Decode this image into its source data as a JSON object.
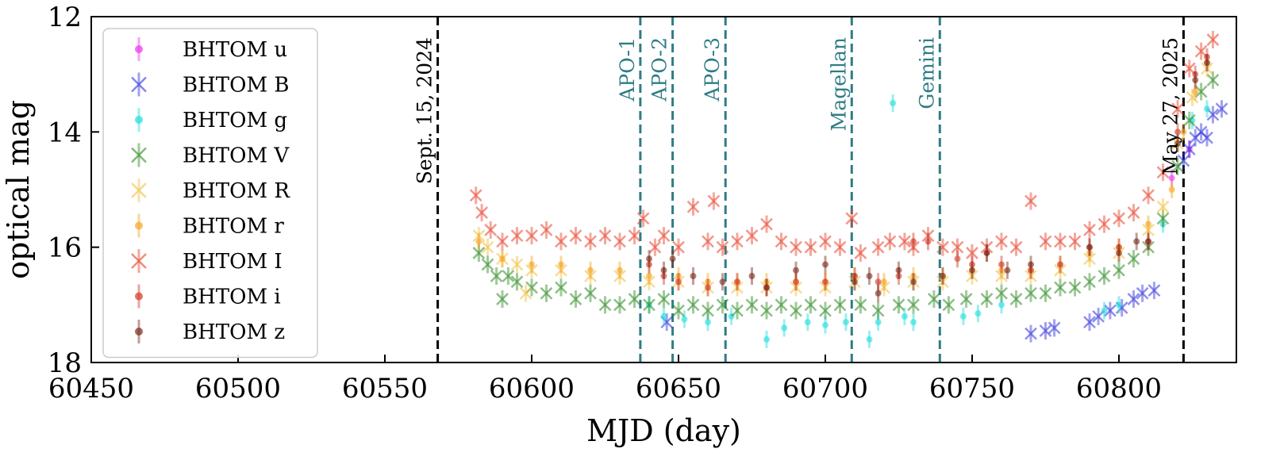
{
  "chart_data": {
    "type": "scatter",
    "title": "",
    "xlabel": "MJD (day)",
    "ylabel": "optical mag",
    "xlim": [
      60450,
      60840
    ],
    "ylim": [
      18,
      12
    ],
    "y_inverted": true,
    "xticks": [
      60450,
      60500,
      60550,
      60600,
      60650,
      60700,
      60750,
      60800
    ],
    "xtick_labels": [
      "60450",
      "60500",
      "60550",
      "60600",
      "60650",
      "60700",
      "60750",
      "60800"
    ],
    "yticks": [
      12,
      14,
      16,
      18
    ],
    "ytick_labels": [
      "12",
      "14",
      "16",
      "18"
    ],
    "grid": false,
    "legend_position": "upper-left",
    "vertical_lines": [
      {
        "x": 60568,
        "label": "Sept. 15, 2024",
        "color": "#000000",
        "style": "dashed"
      },
      {
        "x": 60637,
        "label": "APO-1",
        "color": "#2e7d85",
        "style": "dashed"
      },
      {
        "x": 60648,
        "label": "APO-2",
        "color": "#2e7d85",
        "style": "dashed"
      },
      {
        "x": 60666,
        "label": "APO-3",
        "color": "#2e7d85",
        "style": "dashed"
      },
      {
        "x": 60709,
        "label": "Magellan",
        "color": "#2e7d85",
        "style": "dashed"
      },
      {
        "x": 60739,
        "label": "Gemini",
        "color": "#2e7d85",
        "style": "dashed"
      },
      {
        "x": 60822,
        "label": "May 27, 2025",
        "color": "#000000",
        "style": "dashed"
      }
    ],
    "series": [
      {
        "name": "BHTOM u",
        "marker": "dot",
        "color": "#ee33ee",
        "points": [
          [
            60818,
            14.8
          ],
          [
            60824,
            14.3
          ]
        ]
      },
      {
        "name": "BHTOM B",
        "marker": "x",
        "color": "#3333dd",
        "points": [
          [
            60646,
            17.3
          ],
          [
            60770,
            17.5
          ],
          [
            60775,
            17.45
          ],
          [
            60778,
            17.4
          ],
          [
            60790,
            17.3
          ],
          [
            60793,
            17.2
          ],
          [
            60797,
            17.1
          ],
          [
            60801,
            17.05
          ],
          [
            60805,
            16.9
          ],
          [
            60808,
            16.8
          ],
          [
            60812,
            16.75
          ],
          [
            60822,
            14.5
          ],
          [
            60824,
            14.3
          ],
          [
            60826,
            14.1
          ],
          [
            60828,
            14.0
          ],
          [
            60830,
            14.1
          ],
          [
            60832,
            13.7
          ],
          [
            60835,
            13.6
          ]
        ]
      },
      {
        "name": "BHTOM g",
        "marker": "dot",
        "color": "#22dddd",
        "points": [
          [
            60640,
            17.0
          ],
          [
            60645,
            17.2
          ],
          [
            60652,
            17.25
          ],
          [
            60660,
            17.3
          ],
          [
            60668,
            17.2
          ],
          [
            60680,
            17.6
          ],
          [
            60686,
            17.4
          ],
          [
            60694,
            17.3
          ],
          [
            60700,
            17.35
          ],
          [
            60707,
            17.3
          ],
          [
            60715,
            17.6
          ],
          [
            60718,
            17.3
          ],
          [
            60723,
            13.5
          ],
          [
            60727,
            17.2
          ],
          [
            60730,
            17.3
          ],
          [
            60747,
            17.2
          ],
          [
            60752,
            17.15
          ],
          [
            60760,
            17.0
          ],
          [
            60795,
            17.1
          ],
          [
            60800,
            17.0
          ],
          [
            60815,
            15.6
          ],
          [
            60825,
            13.8
          ],
          [
            60830,
            13.6
          ]
        ]
      },
      {
        "name": "BHTOM V",
        "marker": "x",
        "color": "#2e8b22",
        "points": [
          [
            60582,
            16.1
          ],
          [
            60585,
            16.3
          ],
          [
            60588,
            16.5
          ],
          [
            60590,
            16.9
          ],
          [
            60592,
            16.5
          ],
          [
            60595,
            16.6
          ],
          [
            60600,
            16.7
          ],
          [
            60605,
            16.8
          ],
          [
            60610,
            16.7
          ],
          [
            60615,
            16.9
          ],
          [
            60620,
            16.8
          ],
          [
            60625,
            17.0
          ],
          [
            60630,
            17.0
          ],
          [
            60635,
            16.9
          ],
          [
            60640,
            17.0
          ],
          [
            60645,
            16.9
          ],
          [
            60650,
            17.1
          ],
          [
            60655,
            17.0
          ],
          [
            60660,
            17.1
          ],
          [
            60665,
            17.0
          ],
          [
            60670,
            17.1
          ],
          [
            60675,
            17.0
          ],
          [
            60680,
            17.1
          ],
          [
            60685,
            17.0
          ],
          [
            60690,
            17.1
          ],
          [
            60695,
            17.0
          ],
          [
            60700,
            17.1
          ],
          [
            60705,
            17.0
          ],
          [
            60712,
            17.0
          ],
          [
            60718,
            17.1
          ],
          [
            60725,
            17.0
          ],
          [
            60730,
            17.0
          ],
          [
            60737,
            16.9
          ],
          [
            60742,
            17.0
          ],
          [
            60748,
            16.9
          ],
          [
            60755,
            16.9
          ],
          [
            60760,
            16.8
          ],
          [
            60765,
            16.9
          ],
          [
            60770,
            16.8
          ],
          [
            60775,
            16.8
          ],
          [
            60780,
            16.7
          ],
          [
            60785,
            16.7
          ],
          [
            60790,
            16.6
          ],
          [
            60795,
            16.5
          ],
          [
            60800,
            16.4
          ],
          [
            60805,
            16.2
          ],
          [
            60810,
            16.0
          ],
          [
            60815,
            15.5
          ],
          [
            60820,
            14.6
          ],
          [
            60824,
            13.8
          ],
          [
            60828,
            13.3
          ],
          [
            60832,
            13.1
          ]
        ]
      },
      {
        "name": "BHTOM R",
        "marker": "x",
        "color": "#f0c040",
        "points": [
          [
            60582,
            15.8
          ],
          [
            60585,
            16.0
          ],
          [
            60590,
            16.2
          ],
          [
            60595,
            16.3
          ],
          [
            60598,
            16.8
          ],
          [
            60600,
            16.4
          ],
          [
            60610,
            16.4
          ],
          [
            60620,
            16.5
          ],
          [
            60630,
            16.5
          ],
          [
            60640,
            16.6
          ],
          [
            60650,
            16.6
          ],
          [
            60660,
            16.7
          ],
          [
            60670,
            16.7
          ],
          [
            60680,
            16.7
          ],
          [
            60690,
            16.7
          ],
          [
            60700,
            16.7
          ],
          [
            60710,
            16.6
          ],
          [
            60720,
            16.7
          ],
          [
            60730,
            16.6
          ],
          [
            60740,
            16.6
          ],
          [
            60750,
            16.5
          ],
          [
            60760,
            16.5
          ],
          [
            60770,
            16.5
          ],
          [
            60780,
            16.4
          ],
          [
            60790,
            16.2
          ],
          [
            60800,
            16.1
          ],
          [
            60810,
            15.7
          ],
          [
            60815,
            15.3
          ],
          [
            60820,
            14.2
          ],
          [
            60825,
            13.4
          ],
          [
            60830,
            12.9
          ]
        ]
      },
      {
        "name": "BHTOM r",
        "marker": "dot",
        "color": "#f5a623",
        "points": [
          [
            60582,
            15.9
          ],
          [
            60590,
            16.2
          ],
          [
            60600,
            16.3
          ],
          [
            60610,
            16.3
          ],
          [
            60620,
            16.4
          ],
          [
            60630,
            16.4
          ],
          [
            60640,
            16.5
          ],
          [
            60650,
            16.5
          ],
          [
            60660,
            16.6
          ],
          [
            60670,
            16.6
          ],
          [
            60680,
            16.6
          ],
          [
            60690,
            16.6
          ],
          [
            60700,
            16.6
          ],
          [
            60710,
            16.5
          ],
          [
            60720,
            16.6
          ],
          [
            60730,
            16.5
          ],
          [
            60740,
            16.5
          ],
          [
            60750,
            16.4
          ],
          [
            60760,
            16.4
          ],
          [
            60770,
            16.4
          ],
          [
            60780,
            16.3
          ],
          [
            60790,
            16.1
          ],
          [
            60800,
            16.0
          ],
          [
            60810,
            15.6
          ],
          [
            60818,
            15.0
          ],
          [
            60822,
            14.0
          ],
          [
            60826,
            13.3
          ],
          [
            60830,
            12.8
          ]
        ]
      },
      {
        "name": "BHTOM I",
        "marker": "x",
        "color": "#e8402a",
        "points": [
          [
            60581,
            15.1
          ],
          [
            60583,
            15.4
          ],
          [
            60586,
            15.7
          ],
          [
            60590,
            15.9
          ],
          [
            60595,
            15.8
          ],
          [
            60600,
            15.8
          ],
          [
            60605,
            15.7
          ],
          [
            60610,
            15.9
          ],
          [
            60615,
            15.8
          ],
          [
            60620,
            15.9
          ],
          [
            60625,
            15.8
          ],
          [
            60630,
            15.9
          ],
          [
            60635,
            15.8
          ],
          [
            60638,
            15.5
          ],
          [
            60642,
            16.0
          ],
          [
            60645,
            15.8
          ],
          [
            60650,
            16.0
          ],
          [
            60655,
            15.3
          ],
          [
            60660,
            15.9
          ],
          [
            60662,
            15.2
          ],
          [
            60665,
            16.0
          ],
          [
            60670,
            15.9
          ],
          [
            60675,
            15.8
          ],
          [
            60680,
            15.6
          ],
          [
            60685,
            15.9
          ],
          [
            60690,
            16.0
          ],
          [
            60695,
            16.0
          ],
          [
            60700,
            15.9
          ],
          [
            60705,
            16.0
          ],
          [
            60709,
            15.5
          ],
          [
            60712,
            16.1
          ],
          [
            60718,
            16.0
          ],
          [
            60722,
            15.9
          ],
          [
            60727,
            15.9
          ],
          [
            60730,
            16.0
          ],
          [
            60735,
            15.8
          ],
          [
            60740,
            16.0
          ],
          [
            60745,
            16.0
          ],
          [
            60750,
            16.1
          ],
          [
            60755,
            16.0
          ],
          [
            60760,
            15.9
          ],
          [
            60765,
            16.0
          ],
          [
            60770,
            15.2
          ],
          [
            60775,
            15.9
          ],
          [
            60780,
            15.9
          ],
          [
            60785,
            15.9
          ],
          [
            60790,
            15.7
          ],
          [
            60795,
            15.6
          ],
          [
            60800,
            15.5
          ],
          [
            60805,
            15.4
          ],
          [
            60810,
            15.1
          ],
          [
            60815,
            14.7
          ],
          [
            60820,
            13.6
          ],
          [
            60824,
            12.9
          ],
          [
            60828,
            12.6
          ],
          [
            60832,
            12.4
          ]
        ]
      },
      {
        "name": "BHTOM i",
        "marker": "dot",
        "color": "#d23a2a",
        "points": [
          [
            60640,
            16.3
          ],
          [
            60645,
            16.5
          ],
          [
            60650,
            16.6
          ],
          [
            60660,
            16.7
          ],
          [
            60670,
            16.6
          ],
          [
            60680,
            16.7
          ],
          [
            60690,
            16.6
          ],
          [
            60700,
            16.6
          ],
          [
            60710,
            16.5
          ],
          [
            60718,
            16.6
          ],
          [
            60725,
            16.5
          ],
          [
            60730,
            15.9
          ],
          [
            60735,
            15.9
          ],
          [
            60745,
            16.2
          ],
          [
            60750,
            16.3
          ],
          [
            60755,
            16.1
          ],
          [
            60760,
            16.3
          ],
          [
            60770,
            16.4
          ],
          [
            60780,
            16.3
          ],
          [
            60790,
            16.0
          ],
          [
            60800,
            16.0
          ],
          [
            60810,
            15.9
          ],
          [
            60820,
            14.0
          ],
          [
            60826,
            13.0
          ],
          [
            60830,
            12.7
          ]
        ]
      },
      {
        "name": "BHTOM z",
        "marker": "dot",
        "color": "#7a2a1a",
        "points": [
          [
            60640,
            16.2
          ],
          [
            60645,
            16.4
          ],
          [
            60648,
            16.2
          ],
          [
            60655,
            16.5
          ],
          [
            60665,
            16.6
          ],
          [
            60675,
            16.5
          ],
          [
            60680,
            16.7
          ],
          [
            60690,
            16.4
          ],
          [
            60700,
            16.3
          ],
          [
            60710,
            16.6
          ],
          [
            60715,
            16.5
          ],
          [
            60718,
            16.8
          ],
          [
            60725,
            16.4
          ],
          [
            60730,
            16.6
          ],
          [
            60740,
            16.5
          ],
          [
            60750,
            16.4
          ],
          [
            60755,
            16.1
          ],
          [
            60762,
            16.4
          ],
          [
            60770,
            16.3
          ],
          [
            60790,
            16.0
          ],
          [
            60800,
            16.1
          ],
          [
            60806,
            15.9
          ],
          [
            60810,
            15.9
          ],
          [
            60820,
            14.2
          ],
          [
            60826,
            13.1
          ],
          [
            60830,
            12.8
          ]
        ]
      }
    ]
  }
}
